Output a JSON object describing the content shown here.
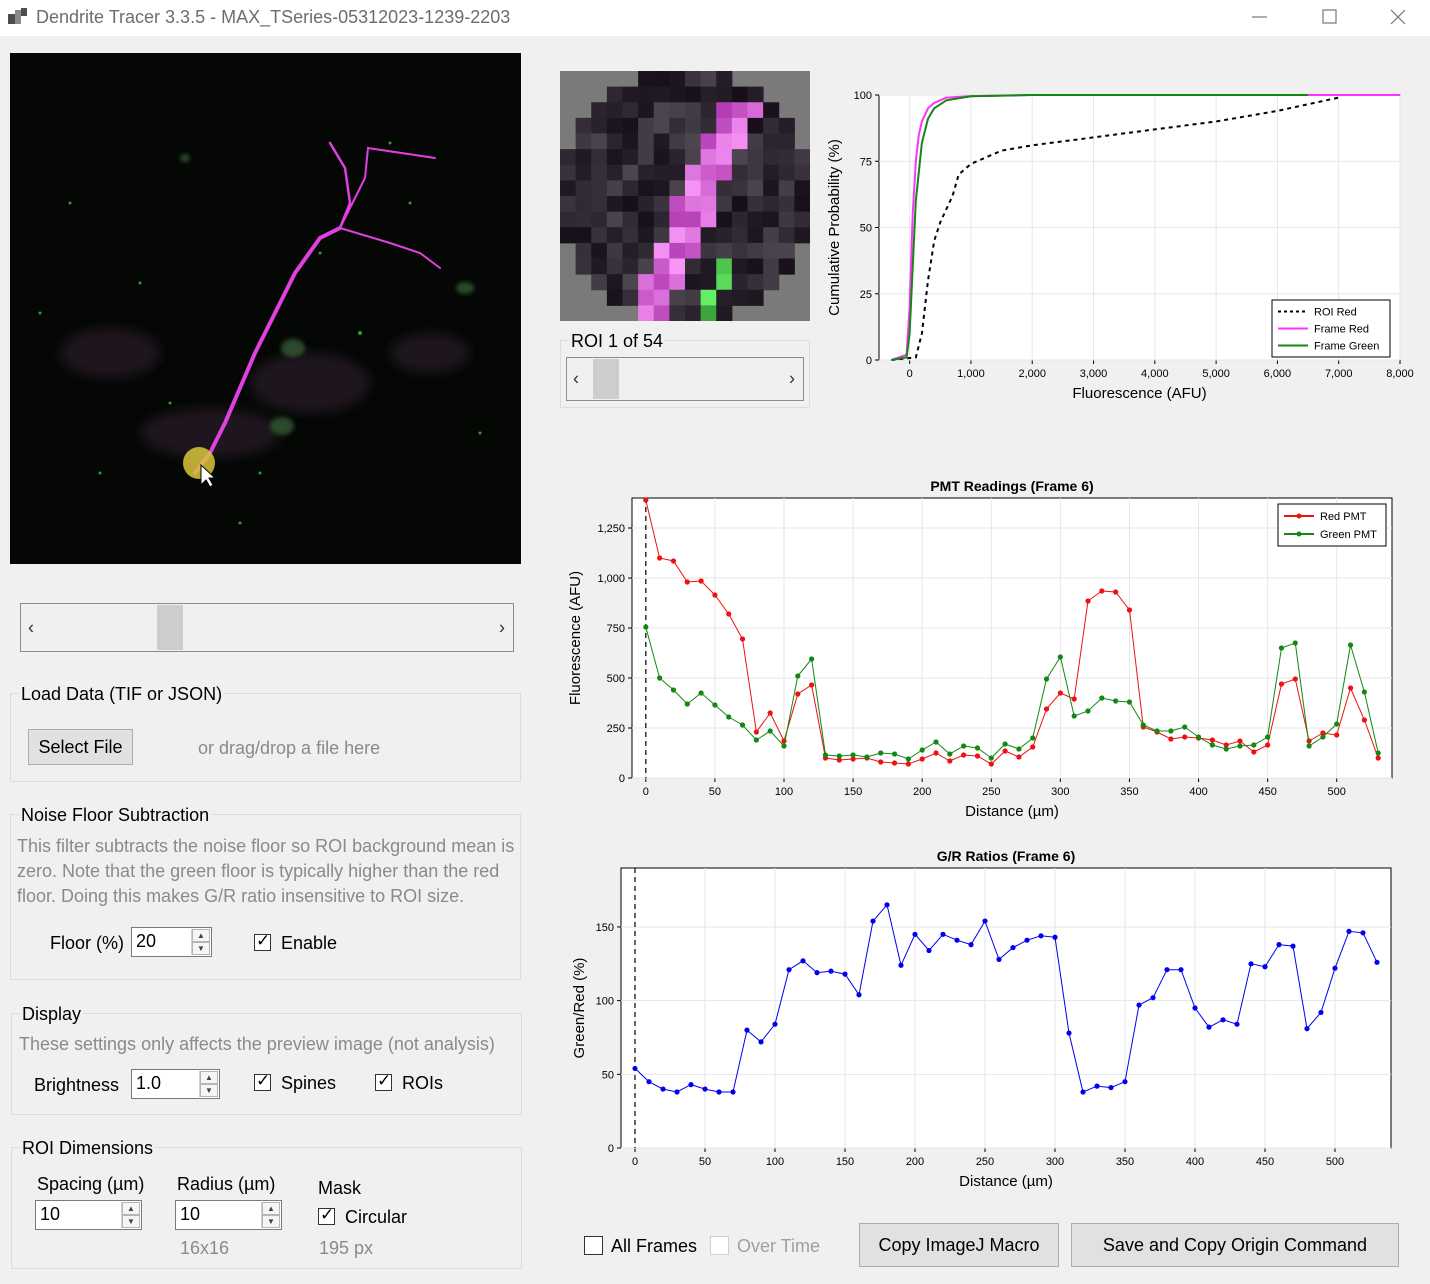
{
  "window": {
    "title": "Dendrite Tracer 3.3.5 - MAX_TSeries-05312023-1239-2203",
    "controls": [
      "minimize-icon",
      "maximize-icon",
      "close-icon"
    ]
  },
  "roi_navigator": {
    "label": "ROI 1 of 54"
  },
  "load_data": {
    "title": "Load Data (TIF or JSON)",
    "button": "Select File",
    "hint": "or drag/drop a file here"
  },
  "noise_floor": {
    "title": "Noise Floor Subtraction",
    "description_lines": [
      "This filter subtracts the noise floor so ROI background mean is",
      "zero. Note that the green floor is typically higher than the red",
      "floor. Doing this makes G/R ratio insensitive to ROI size."
    ],
    "floor_label": "Floor (%)",
    "floor_value": "20",
    "enable_label": "Enable",
    "enable_checked": true
  },
  "display": {
    "title": "Display",
    "description": "These settings only affects the preview image (not analysis)",
    "brightness_label": "Brightness",
    "brightness_value": "1.0",
    "spines_label": "Spines",
    "spines_checked": true,
    "rois_label": "ROIs",
    "rois_checked": true
  },
  "roi_dimensions": {
    "title": "ROI Dimensions",
    "spacing_label": "Spacing (µm)",
    "spacing_value": "10",
    "radius_label": "Radius (µm)",
    "radius_value": "10",
    "radius_hint": "16x16",
    "mask_label": "Mask",
    "circular_label": "Circular",
    "circular_checked": true,
    "mask_hint": "195 px"
  },
  "footer": {
    "all_frames_label": "All Frames",
    "all_frames_checked": false,
    "over_time_label": "Over Time",
    "over_time_enabled": false,
    "copy_imagej_button": "Copy ImageJ Macro",
    "save_origin_button": "Save and Copy Origin Command"
  },
  "chart_data": [
    {
      "type": "line",
      "xlabel": "Fluorescence (AFU)",
      "ylabel": "Cumulative Probability (%)",
      "xlim": [
        -500,
        8000
      ],
      "ylim": [
        0,
        100
      ],
      "xticks": [
        "0",
        "1,000",
        "2,000",
        "3,000",
        "4,000",
        "5,000",
        "6,000",
        "7,000",
        "8,000"
      ],
      "yticks": [
        "0",
        "25",
        "50",
        "75",
        "100"
      ],
      "legend_position": "bottom-right",
      "series": [
        {
          "name": "ROI Red",
          "color": "#000000",
          "dash": true,
          "x": [
            -300,
            100,
            200,
            300,
            400,
            500,
            700,
            800,
            1000,
            1500,
            2000,
            3000,
            4000,
            5000,
            6000,
            7000
          ],
          "y": [
            0,
            1,
            10,
            30,
            45,
            52,
            62,
            70,
            74,
            79,
            81,
            84,
            87,
            90,
            94,
            99
          ]
        },
        {
          "name": "Frame Red",
          "color": "#ff33ff",
          "dash": false,
          "x": [
            -300,
            -50,
            0,
            50,
            100,
            150,
            200,
            300,
            400,
            600,
            1000,
            2000,
            3000,
            8000
          ],
          "y": [
            0,
            2,
            20,
            55,
            75,
            85,
            90,
            95,
            97,
            99,
            99.6,
            100,
            100,
            100
          ]
        },
        {
          "name": "Frame Green",
          "color": "#118811",
          "dash": false,
          "x": [
            -300,
            -50,
            0,
            50,
            100,
            200,
            300,
            400,
            600,
            1000,
            2000,
            3000,
            6500
          ],
          "y": [
            0,
            1,
            10,
            35,
            60,
            82,
            91,
            95,
            98,
            99.5,
            100,
            100,
            100
          ]
        }
      ]
    },
    {
      "type": "line",
      "title": "PMT Readings (Frame 6)",
      "xlabel": "Distance (µm)",
      "ylabel": "Fluorescence (AFU)",
      "xlim": [
        -10,
        540
      ],
      "ylim": [
        0,
        1400
      ],
      "xticks": [
        "0",
        "50",
        "100",
        "150",
        "200",
        "250",
        "300",
        "350",
        "400",
        "450",
        "500"
      ],
      "yticks": [
        "0",
        "250",
        "500",
        "750",
        "1,000",
        "1,250"
      ],
      "legend_position": "top-right",
      "x": [
        0,
        10,
        20,
        30,
        40,
        50,
        60,
        70,
        80,
        90,
        100,
        110,
        120,
        130,
        140,
        150,
        160,
        170,
        180,
        190,
        200,
        210,
        220,
        230,
        240,
        250,
        260,
        270,
        280,
        290,
        300,
        310,
        320,
        330,
        340,
        350,
        360,
        370,
        380,
        390,
        400,
        410,
        420,
        430,
        440,
        450,
        460,
        470,
        480,
        490,
        500,
        510,
        520,
        530
      ],
      "series": [
        {
          "name": "Red PMT",
          "color": "#ee1111",
          "values": [
            1390,
            1100,
            1085,
            980,
            985,
            915,
            820,
            695,
            230,
            325,
            185,
            420,
            465,
            100,
            90,
            95,
            100,
            80,
            75,
            70,
            95,
            125,
            85,
            115,
            110,
            70,
            135,
            105,
            155,
            345,
            425,
            395,
            885,
            935,
            930,
            840,
            255,
            230,
            195,
            205,
            200,
            190,
            165,
            185,
            130,
            165,
            470,
            495,
            185,
            225,
            215,
            450,
            290,
            100
          ]
        },
        {
          "name": "Green PMT",
          "color": "#118811",
          "values": [
            755,
            500,
            440,
            370,
            425,
            365,
            305,
            265,
            190,
            235,
            160,
            510,
            595,
            115,
            110,
            115,
            105,
            125,
            120,
            95,
            140,
            180,
            120,
            160,
            150,
            100,
            170,
            145,
            200,
            495,
            605,
            310,
            335,
            400,
            385,
            380,
            265,
            235,
            235,
            255,
            205,
            165,
            145,
            160,
            165,
            205,
            650,
            675,
            160,
            205,
            270,
            665,
            430,
            125
          ]
        }
      ]
    },
    {
      "type": "line",
      "title": "G/R Ratios (Frame 6)",
      "xlabel": "Distance (µm)",
      "ylabel": "Green/Red (%)",
      "xlim": [
        -10,
        540
      ],
      "ylim": [
        0,
        190
      ],
      "xticks": [
        "0",
        "50",
        "100",
        "150",
        "200",
        "250",
        "300",
        "350",
        "400",
        "450",
        "500"
      ],
      "yticks": [
        "0",
        "50",
        "100",
        "150"
      ],
      "x": [
        0,
        10,
        20,
        30,
        40,
        50,
        60,
        70,
        80,
        90,
        100,
        110,
        120,
        130,
        140,
        150,
        160,
        170,
        180,
        190,
        200,
        210,
        220,
        230,
        240,
        250,
        260,
        270,
        280,
        290,
        300,
        310,
        320,
        330,
        340,
        350,
        360,
        370,
        380,
        390,
        400,
        410,
        420,
        430,
        440,
        450,
        460,
        470,
        480,
        490,
        500,
        510,
        520,
        530
      ],
      "series": [
        {
          "color": "#0000ee",
          "values": [
            54,
            45,
            40,
            38,
            43,
            40,
            38,
            38,
            80,
            72,
            84,
            121,
            127,
            119,
            120,
            118,
            104,
            154,
            165,
            124,
            145,
            134,
            145,
            141,
            138,
            154,
            128,
            136,
            141,
            144,
            143,
            78,
            38,
            42,
            41,
            45,
            97,
            102,
            121,
            121,
            95,
            82,
            87,
            84,
            125,
            123,
            138,
            137,
            81,
            92,
            122,
            147,
            146,
            126
          ]
        }
      ]
    }
  ]
}
